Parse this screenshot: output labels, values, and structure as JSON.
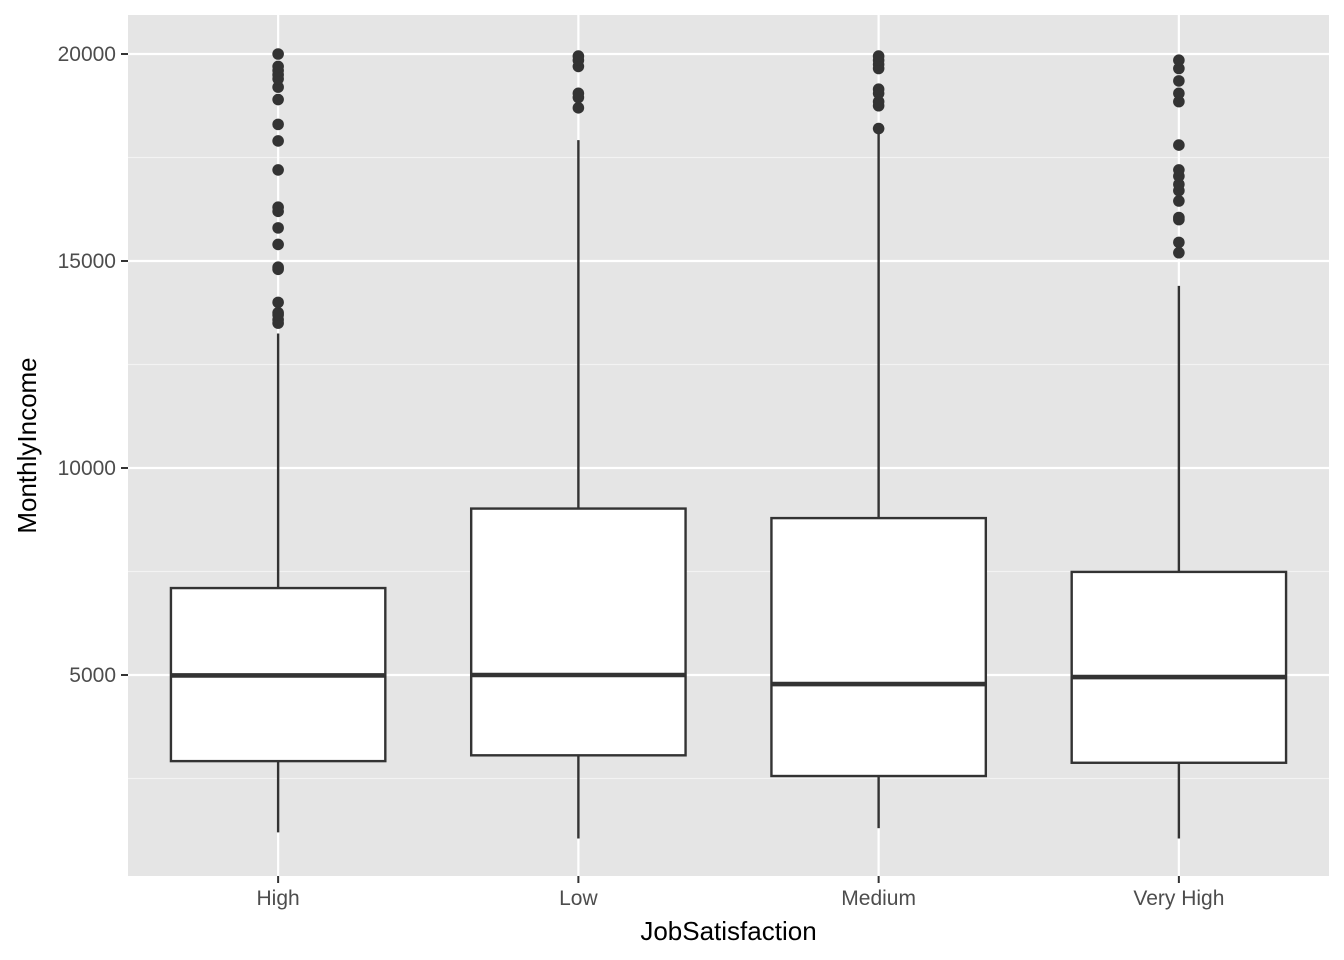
{
  "chart_data": {
    "type": "boxplot",
    "xlabel": "JobSatisfaction",
    "ylabel": "MonthlyIncome",
    "categories": [
      "High",
      "Low",
      "Medium",
      "Very High"
    ],
    "ylim": [
      0,
      21000
    ],
    "y_ticks": [
      5000,
      10000,
      15000,
      20000
    ],
    "y_minor_ticks": [
      2500,
      7500,
      12500,
      17500
    ],
    "grid": true,
    "legend": "none",
    "boxes": [
      {
        "category": "High",
        "lower_whisker": 1200,
        "q1": 2920,
        "median": 4990,
        "q3": 7100,
        "upper_whisker": 13250,
        "outliers": [
          13500,
          13580,
          13700,
          13750,
          14000,
          14800,
          14850,
          15400,
          15800,
          16200,
          16300,
          17200,
          17900,
          18300,
          18900,
          19200,
          19400,
          19500,
          19600,
          19700,
          20000
        ]
      },
      {
        "category": "Low",
        "lower_whisker": 1050,
        "q1": 3060,
        "median": 5000,
        "q3": 9020,
        "upper_whisker": 17920,
        "outliers": [
          18700,
          18950,
          19050,
          19700,
          19850,
          19950
        ]
      },
      {
        "category": "Medium",
        "lower_whisker": 1300,
        "q1": 2560,
        "median": 4780,
        "q3": 8790,
        "upper_whisker": 18150,
        "outliers": [
          18200,
          18750,
          18850,
          19050,
          19150,
          19650,
          19750,
          19850,
          19950
        ]
      },
      {
        "category": "Very High",
        "lower_whisker": 1050,
        "q1": 2880,
        "median": 4950,
        "q3": 7490,
        "upper_whisker": 14400,
        "outliers": [
          15200,
          15450,
          16000,
          16050,
          16450,
          16700,
          16850,
          17050,
          17200,
          17800,
          18850,
          19050,
          19350,
          19650,
          19850
        ]
      }
    ]
  }
}
